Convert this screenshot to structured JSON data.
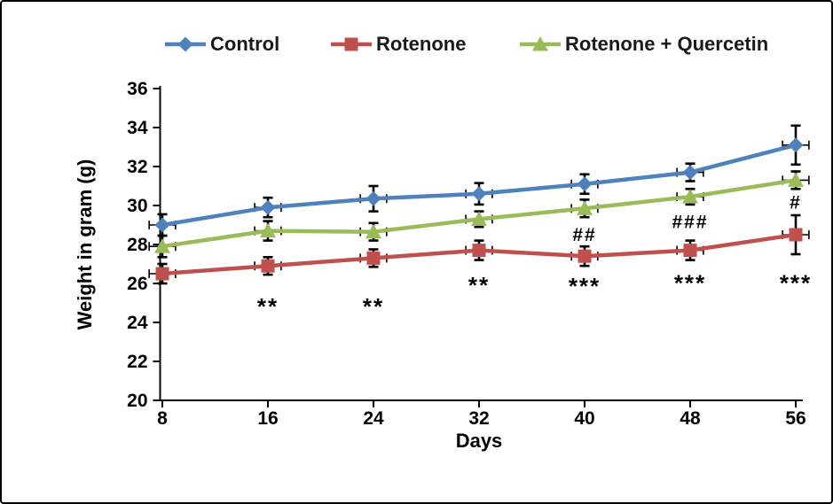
{
  "figure": {
    "background": "#FFFFFF",
    "border_color": "#000000",
    "axis_color": "#000000",
    "error_bar_color": "#000000",
    "annotation_color": "#000000"
  },
  "chart_data": {
    "type": "line",
    "title": "",
    "xlabel": "Days",
    "ylabel": "Weight in gram (g)",
    "x": [
      8,
      16,
      24,
      32,
      40,
      48,
      56
    ],
    "xticks": [
      "8",
      "16",
      "24",
      "32",
      "40",
      "48",
      "56"
    ],
    "yticks": [
      "20",
      "22",
      "24",
      "26",
      "28",
      "30",
      "32",
      "34",
      "36"
    ],
    "xlim": [
      8,
      56
    ],
    "ylim": [
      20,
      36
    ],
    "grid": false,
    "legend_position": "top",
    "x_error": 1,
    "series": [
      {
        "name": "Control",
        "color": "#4F81BD",
        "marker": "diamond",
        "values": [
          29.0,
          29.9,
          30.35,
          30.6,
          31.1,
          31.7,
          33.1
        ],
        "y_error": [
          0.55,
          0.5,
          0.65,
          0.55,
          0.5,
          0.45,
          1.0
        ]
      },
      {
        "name": "Rotenone",
        "color": "#C0504D",
        "marker": "square",
        "values": [
          26.5,
          26.9,
          27.3,
          27.7,
          27.4,
          27.7,
          28.5
        ],
        "y_error": [
          0.5,
          0.45,
          0.45,
          0.5,
          0.5,
          0.5,
          1.0
        ]
      },
      {
        "name": "Rotenone + Quercetin",
        "color": "#9BBB59",
        "marker": "triangle",
        "values": [
          27.9,
          28.7,
          28.65,
          29.3,
          29.85,
          30.45,
          31.3
        ],
        "y_error": [
          0.55,
          0.5,
          0.45,
          0.4,
          0.45,
          0.4,
          0.45
        ]
      }
    ],
    "annotations": [
      {
        "x": 16,
        "y": 25.0,
        "text": "**"
      },
      {
        "x": 24,
        "y": 25.0,
        "text": "**"
      },
      {
        "x": 32,
        "y": 26.1,
        "text": "**"
      },
      {
        "x": 40,
        "y": 26.05,
        "text": "***"
      },
      {
        "x": 48,
        "y": 26.2,
        "text": "***"
      },
      {
        "x": 56,
        "y": 26.2,
        "text": "***"
      },
      {
        "x": 40,
        "y": 28.55,
        "text": "##"
      },
      {
        "x": 48,
        "y": 29.2,
        "text": "###"
      },
      {
        "x": 56,
        "y": 30.2,
        "text": "#"
      }
    ]
  }
}
